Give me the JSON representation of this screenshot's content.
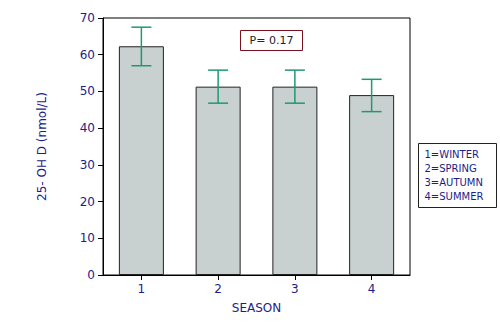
{
  "chart_data": {
    "type": "bar",
    "x_label": "SEASON",
    "y_label": "25- OH D (nmol/L)",
    "categories": [
      "1",
      "2",
      "3",
      "4"
    ],
    "values": [
      62.3,
      51.3,
      51.3,
      49.0
    ],
    "error_bars": {
      "low": [
        57.0,
        46.8,
        46.8,
        44.5
      ],
      "high": [
        67.5,
        55.8,
        55.8,
        53.3
      ]
    },
    "color": "#c8d0d0",
    "ylim": [
      0,
      70
    ],
    "yticks": [
      0,
      10,
      20,
      30,
      40,
      50,
      60,
      70
    ],
    "grid": false,
    "annotation": "P= 0.17",
    "key": [
      "1=WINTER",
      "2=SPRING",
      "3=AUTUMN",
      "4=SUMMER"
    ]
  }
}
